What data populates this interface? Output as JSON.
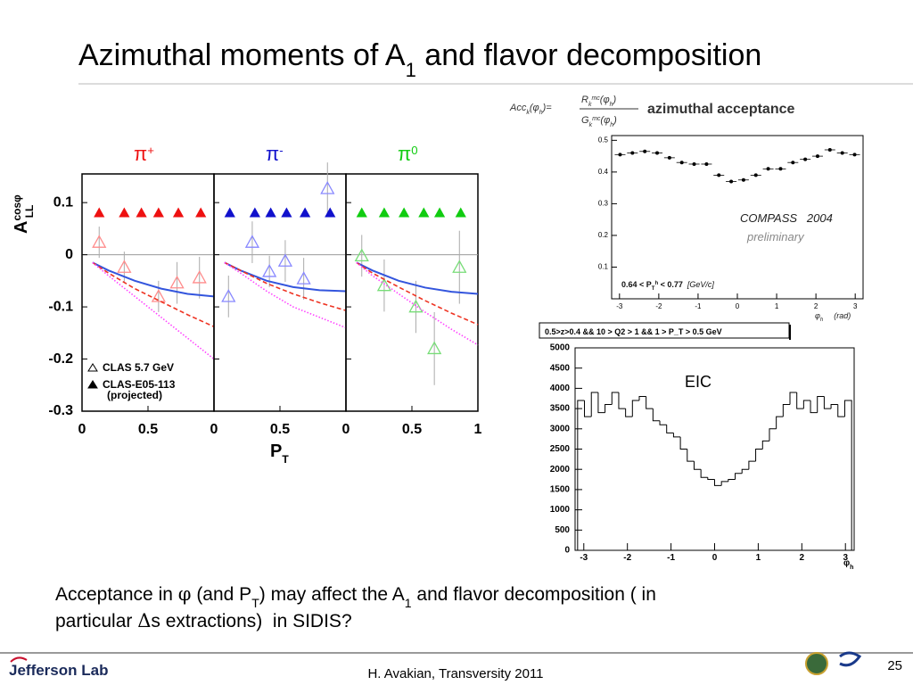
{
  "title": {
    "before": "Azimuthal moments of A",
    "sub": "1",
    "after": " and flavor decomposition"
  },
  "chart_data": [
    {
      "type": "scatter",
      "ylabel": {
        "base": "A",
        "sup": "cosφ",
        "sub": "LL"
      },
      "xlabel": {
        "base": "P",
        "sub": "T"
      },
      "ylim": [
        -0.3,
        0.155
      ],
      "yticks": [
        0.1,
        0,
        -0.1,
        -0.2,
        -0.3
      ],
      "xlim": [
        0,
        1
      ],
      "legend": {
        "position": "lower left",
        "note": "(projected)"
      },
      "panels": [
        {
          "title": {
            "base": "π",
            "sup": "+"
          },
          "xticks": [
            0,
            0.5
          ],
          "series": [
            {
              "name": "CLAS 5.7 GeV",
              "marker": "open-triangle",
              "color": "#ff8c8c",
              "x": [
                0.13,
                0.32,
                0.58,
                0.72,
                0.89
              ],
              "values": [
                0.024,
                -0.024,
                -0.08,
                -0.054,
                -0.044
              ],
              "errors": [
                0.03,
                0.03,
                0.03,
                0.04,
                0.04
              ]
            },
            {
              "name": "CLAS-E05-113",
              "marker": "filled-triangle",
              "color": "#ee1111",
              "x": [
                0.13,
                0.32,
                0.45,
                0.58,
                0.73,
                0.9
              ],
              "values": [
                0.08,
                0.08,
                0.08,
                0.08,
                0.08,
                0.08
              ],
              "errors": [
                0.008,
                0.008,
                0.008,
                0.008,
                0.008,
                0.008
              ]
            },
            {
              "style": "solid",
              "color": "#3355dd",
              "x": [
                0.08,
                0.2,
                0.4,
                0.6,
                0.8,
                1.0
              ],
              "values": [
                -0.015,
                -0.03,
                -0.05,
                -0.065,
                -0.075,
                -0.08
              ]
            },
            {
              "style": "dashed",
              "color": "#ee3322",
              "x": [
                0.08,
                0.2,
                0.4,
                0.6,
                0.8,
                1.0
              ],
              "values": [
                -0.015,
                -0.035,
                -0.065,
                -0.09,
                -0.115,
                -0.138
              ]
            },
            {
              "style": "dotted",
              "color": "#ff44ff",
              "x": [
                0.08,
                0.2,
                0.4,
                0.6,
                0.8,
                1.0
              ],
              "values": [
                -0.015,
                -0.04,
                -0.08,
                -0.12,
                -0.16,
                -0.2
              ]
            }
          ]
        },
        {
          "title": {
            "base": "π",
            "sup": "-"
          },
          "xticks": [
            0,
            0.5
          ],
          "series": [
            {
              "marker": "open-triangle",
              "color": "#8888ff",
              "x": [
                0.11,
                0.29,
                0.42,
                0.54,
                0.68,
                0.86
              ],
              "values": [
                -0.08,
                0.024,
                -0.032,
                -0.012,
                -0.046,
                0.127
              ],
              "errors": [
                0.04,
                0.04,
                0.03,
                0.04,
                0.04,
                0.05
              ]
            },
            {
              "marker": "filled-triangle",
              "color": "#1111cc",
              "x": [
                0.12,
                0.31,
                0.43,
                0.55,
                0.69,
                0.88
              ],
              "values": [
                0.08,
                0.08,
                0.08,
                0.08,
                0.08,
                0.08
              ],
              "errors": [
                0.008,
                0.008,
                0.008,
                0.008,
                0.008,
                0.008
              ]
            },
            {
              "style": "solid",
              "color": "#3355dd",
              "x": [
                0.08,
                0.2,
                0.4,
                0.6,
                0.8,
                1.0
              ],
              "values": [
                -0.015,
                -0.03,
                -0.05,
                -0.062,
                -0.068,
                -0.07
              ]
            },
            {
              "style": "dashed",
              "color": "#ee3322",
              "x": [
                0.08,
                0.2,
                0.4,
                0.6,
                0.8,
                1.0
              ],
              "values": [
                -0.015,
                -0.03,
                -0.055,
                -0.075,
                -0.092,
                -0.107
              ]
            },
            {
              "style": "dotted",
              "color": "#ff44ff",
              "x": [
                0.08,
                0.2,
                0.4,
                0.6,
                0.8,
                1.0
              ],
              "values": [
                -0.015,
                -0.035,
                -0.07,
                -0.1,
                -0.12,
                -0.14
              ]
            }
          ]
        },
        {
          "title": {
            "base": "π",
            "sup": "0"
          },
          "xticks": [
            0,
            0.5,
            1
          ],
          "series": [
            {
              "marker": "open-triangle",
              "color": "#77dd77",
              "x": [
                0.12,
                0.29,
                0.53,
                0.67,
                0.86
              ],
              "values": [
                -0.002,
                -0.059,
                -0.1,
                -0.18,
                -0.024
              ],
              "errors": [
                0.04,
                0.05,
                0.05,
                0.07,
                0.07
              ]
            },
            {
              "marker": "filled-triangle",
              "color": "#11cc11",
              "x": [
                0.12,
                0.29,
                0.44,
                0.59,
                0.71,
                0.87
              ],
              "values": [
                0.08,
                0.08,
                0.08,
                0.08,
                0.08,
                0.08
              ],
              "errors": [
                0.008,
                0.008,
                0.008,
                0.008,
                0.008,
                0.008
              ]
            },
            {
              "style": "solid",
              "color": "#3355dd",
              "x": [
                0.08,
                0.2,
                0.4,
                0.6,
                0.8,
                1.0
              ],
              "values": [
                -0.015,
                -0.03,
                -0.05,
                -0.063,
                -0.071,
                -0.075
              ]
            },
            {
              "style": "dashed",
              "color": "#ee3322",
              "x": [
                0.08,
                0.2,
                0.4,
                0.6,
                0.8,
                1.0
              ],
              "values": [
                -0.015,
                -0.035,
                -0.062,
                -0.088,
                -0.112,
                -0.134
              ]
            },
            {
              "style": "dotted",
              "color": "#ff44ff",
              "x": [
                0.08,
                0.2,
                0.4,
                0.6,
                0.8,
                1.0
              ],
              "values": [
                -0.015,
                -0.04,
                -0.075,
                -0.11,
                -0.143,
                -0.173
              ]
            }
          ]
        }
      ]
    },
    {
      "type": "scatter",
      "formula": [
        "Acc",
        "k",
        "(φ",
        "h",
        ")=",
        "R",
        "k",
        "mc",
        "(φ",
        "h",
        ")",
        "G",
        "k",
        "mc",
        "(φ",
        "h",
        ")"
      ],
      "subtitle": "azimuthal acceptance",
      "annotations": [
        "COMPASS   2004",
        "preliminary"
      ],
      "cut": [
        "0.64 < P",
        "T",
        "h",
        " < 0.77  ",
        "[GeV/c]"
      ],
      "xlabel": [
        "φ",
        "h",
        "(rad)"
      ],
      "xlim": [
        -3.2,
        3.2
      ],
      "ylim": [
        0,
        0.515
      ],
      "xticks": [
        -3,
        -2,
        -1,
        0,
        1,
        2,
        3
      ],
      "yticks": [
        0.1,
        0.2,
        0.3,
        0.4,
        0.5
      ],
      "series": [
        {
          "marker": "dot",
          "color": "#000000",
          "x": [
            -2.985,
            -2.671,
            -2.356,
            -2.042,
            -1.728,
            -1.414,
            -1.1,
            -0.785,
            -0.471,
            -0.157,
            0.157,
            0.471,
            0.785,
            1.1,
            1.414,
            1.728,
            2.042,
            2.356,
            2.671,
            2.985
          ],
          "values": [
            0.455,
            0.46,
            0.465,
            0.46,
            0.445,
            0.43,
            0.425,
            0.425,
            0.39,
            0.37,
            0.375,
            0.39,
            0.41,
            0.41,
            0.43,
            0.44,
            0.45,
            0.47,
            0.46,
            0.455
          ]
        }
      ]
    },
    {
      "type": "histogram",
      "header": "0.5>z>0.4 && 10 > Q2 > 1 && 1 > P_T > 0.5 GeV",
      "annotation": "EIC",
      "xlabel": {
        "base": "φ",
        "sub": "h"
      },
      "bins": [
        -3.142,
        -2.985,
        -2.827,
        -2.67,
        -2.513,
        -2.356,
        -2.199,
        -2.042,
        -1.885,
        -1.728,
        -1.571,
        -1.414,
        -1.257,
        -1.1,
        -0.942,
        -0.785,
        -0.628,
        -0.471,
        -0.314,
        -0.157,
        0,
        0.157,
        0.314,
        0.471,
        0.628,
        0.785,
        0.942,
        1.1,
        1.257,
        1.414,
        1.571,
        1.728,
        1.885,
        2.042,
        2.199,
        2.356,
        2.513,
        2.67,
        2.827,
        2.985,
        3.142
      ],
      "values": [
        3700,
        3300,
        3900,
        3400,
        3600,
        3900,
        3500,
        3300,
        3700,
        3800,
        3500,
        3200,
        3100,
        2900,
        2800,
        2500,
        2200,
        2000,
        1800,
        1750,
        1600,
        1700,
        1750,
        1900,
        2000,
        2200,
        2500,
        2700,
        3000,
        3300,
        3600,
        3900,
        3500,
        3700,
        3400,
        3800,
        3500,
        3600,
        3300,
        3700
      ],
      "color": "#000000",
      "xlim": [
        -3.2,
        3.2
      ],
      "ylim": [
        0,
        5000
      ],
      "xticks": [
        -3,
        -2,
        -1,
        0,
        1,
        2,
        3
      ],
      "yticks": [
        0,
        500,
        1000,
        1500,
        2000,
        2500,
        3000,
        3500,
        4000,
        4500,
        5000
      ]
    }
  ],
  "body": {
    "runs": [
      "Acceptance in ",
      "φ",
      " (and P",
      "T",
      ") may affect the A",
      "1",
      " and flavor decomposition ( in",
      "particular ",
      "Δ",
      "s extractions)  in SIDIS?"
    ]
  },
  "footer": {
    "logo": "Jefferson Lab",
    "credit": "H. Avakian, Transversity 2011",
    "page": "25"
  }
}
